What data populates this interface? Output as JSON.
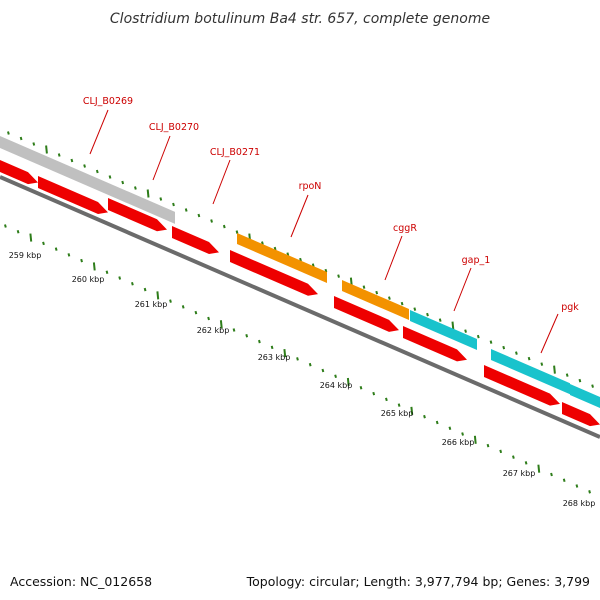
{
  "title": "Clostridium botulinum Ba4 str. 657, complete genome",
  "footer": {
    "accession": "Accession: NC_012658",
    "summary": "Topology: circular; Length: 3,977,794 bp; Genes: 3,799"
  },
  "colors": {
    "backbone": "#6b6b6b",
    "cds": "#ee0000",
    "gray_feature": "#c0c0c0",
    "orange_feature": "#f39200",
    "cyan_feature": "#19c3cc",
    "tick": "#2e7d1a",
    "label": "#cc0000"
  },
  "gene_labels": [
    "CLJ_B0269",
    "CLJ_B0270",
    "CLJ_B0271",
    "rpoN",
    "cggR",
    "gap_1",
    "pgk"
  ],
  "kbp_labels": [
    "259 kbp",
    "260 kbp",
    "261 kbp",
    "262 kbp",
    "263 kbp",
    "264 kbp",
    "265 kbp",
    "266 kbp",
    "267 kbp",
    "268 kbp"
  ]
}
